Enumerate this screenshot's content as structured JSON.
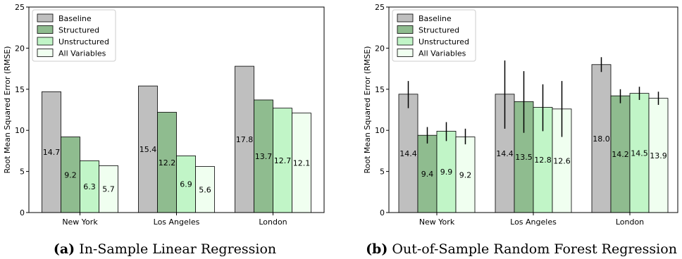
{
  "chart_data": [
    {
      "type": "bar",
      "caption_label": "(a)",
      "caption": "In-Sample Linear Regression",
      "ylabel": "Root Mean Squared Error (RMSE)",
      "xlabel": "",
      "ylim": [
        0,
        25
      ],
      "yticks": [
        0,
        5,
        10,
        15,
        20,
        25
      ],
      "categories": [
        "New York",
        "Los Angeles",
        "London"
      ],
      "series": [
        {
          "name": "Baseline",
          "values": [
            14.7,
            15.4,
            17.8
          ],
          "labels": [
            "14.7",
            "15.4",
            "17.8"
          ]
        },
        {
          "name": "Structured",
          "values": [
            9.2,
            12.2,
            13.7
          ],
          "labels": [
            "9.2",
            "12.2",
            "13.7"
          ]
        },
        {
          "name": "Unstructured",
          "values": [
            6.3,
            6.9,
            12.7
          ],
          "labels": [
            "6.3",
            "6.9",
            "12.7"
          ]
        },
        {
          "name": "All Variables",
          "values": [
            5.7,
            5.6,
            12.1
          ],
          "labels": [
            "5.7",
            "5.6",
            "12.1"
          ]
        }
      ],
      "legend_position": "top-left",
      "grid": false
    },
    {
      "type": "bar",
      "caption_label": "(b)",
      "caption": "Out-of-Sample Random Forest Regression",
      "ylabel": "Root Mean Squared Error (RMSE)",
      "xlabel": "",
      "ylim": [
        0,
        25
      ],
      "yticks": [
        0,
        5,
        10,
        15,
        20,
        25
      ],
      "categories": [
        "New York",
        "Los Angeles",
        "London"
      ],
      "series": [
        {
          "name": "Baseline",
          "values": [
            14.4,
            14.4,
            18.0
          ],
          "labels": [
            "14.4",
            "14.4",
            "18.0"
          ],
          "error": [
            [
              12.7,
              16.0
            ],
            [
              10.2,
              18.5
            ],
            [
              17.1,
              18.9
            ]
          ]
        },
        {
          "name": "Structured",
          "values": [
            9.4,
            13.5,
            14.2
          ],
          "labels": [
            "9.4",
            "13.5",
            "14.2"
          ],
          "error": [
            [
              8.4,
              10.4
            ],
            [
              9.7,
              17.2
            ],
            [
              13.3,
              15.0
            ]
          ]
        },
        {
          "name": "Unstructured",
          "values": [
            9.9,
            12.8,
            14.5
          ],
          "labels": [
            "9.9",
            "12.8",
            "14.5"
          ],
          "error": [
            [
              8.7,
              11.0
            ],
            [
              9.9,
              15.6
            ],
            [
              13.7,
              15.3
            ]
          ]
        },
        {
          "name": "All Variables",
          "values": [
            9.2,
            12.6,
            13.9
          ],
          "labels": [
            "9.2",
            "12.6",
            "13.9"
          ],
          "error": [
            [
              8.3,
              10.2
            ],
            [
              9.2,
              16.0
            ],
            [
              13.1,
              14.7
            ]
          ]
        }
      ],
      "legend_position": "top-left",
      "grid": false
    }
  ],
  "colors": {
    "Baseline": "#bfbfbf",
    "Structured": "#8fbc8f",
    "Unstructured": "#c1f5c7",
    "All Variables": "#f0fff0",
    "edge": "#000000"
  }
}
